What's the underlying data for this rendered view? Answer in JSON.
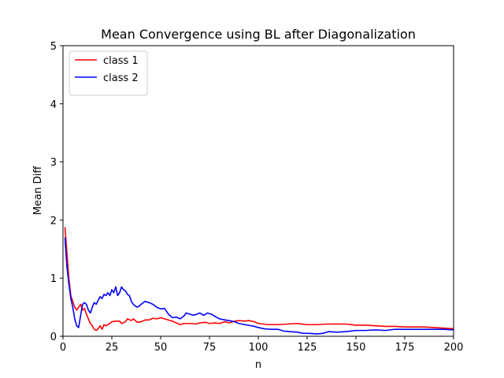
{
  "chart_data": {
    "type": "line",
    "title": "Mean Convergence using BL after Diagonalization",
    "xlabel": "n",
    "ylabel": "Mean Diff",
    "xlim": [
      0,
      200
    ],
    "ylim": [
      0,
      5
    ],
    "xticks": [
      "0",
      "25",
      "50",
      "75",
      "100",
      "125",
      "150",
      "175",
      "200"
    ],
    "yticks": [
      "0",
      "1",
      "2",
      "3",
      "4",
      "5"
    ],
    "grid": false,
    "legend_position": "top-left",
    "series": [
      {
        "name": "class 1",
        "color": "#ff0000",
        "points": [
          [
            1,
            1.88
          ],
          [
            2,
            1.45
          ],
          [
            3,
            1.0
          ],
          [
            4,
            0.7
          ],
          [
            5,
            0.6
          ],
          [
            6,
            0.5
          ],
          [
            7,
            0.45
          ],
          [
            8,
            0.5
          ],
          [
            9,
            0.55
          ],
          [
            10,
            0.45
          ],
          [
            11,
            0.48
          ],
          [
            12,
            0.38
          ],
          [
            13,
            0.3
          ],
          [
            14,
            0.22
          ],
          [
            15,
            0.18
          ],
          [
            16,
            0.12
          ],
          [
            17,
            0.1
          ],
          [
            18,
            0.13
          ],
          [
            19,
            0.18
          ],
          [
            20,
            0.12
          ],
          [
            21,
            0.2
          ],
          [
            22,
            0.18
          ],
          [
            23,
            0.2
          ],
          [
            24,
            0.22
          ],
          [
            25,
            0.25
          ],
          [
            27,
            0.26
          ],
          [
            29,
            0.26
          ],
          [
            30,
            0.22
          ],
          [
            32,
            0.25
          ],
          [
            33,
            0.3
          ],
          [
            35,
            0.27
          ],
          [
            36,
            0.3
          ],
          [
            38,
            0.24
          ],
          [
            40,
            0.25
          ],
          [
            42,
            0.28
          ],
          [
            44,
            0.28
          ],
          [
            46,
            0.31
          ],
          [
            48,
            0.3
          ],
          [
            50,
            0.32
          ],
          [
            52,
            0.3
          ],
          [
            54,
            0.28
          ],
          [
            56,
            0.26
          ],
          [
            58,
            0.23
          ],
          [
            60,
            0.2
          ],
          [
            62,
            0.22
          ],
          [
            65,
            0.22
          ],
          [
            68,
            0.21
          ],
          [
            70,
            0.23
          ],
          [
            73,
            0.24
          ],
          [
            75,
            0.22
          ],
          [
            78,
            0.23
          ],
          [
            80,
            0.22
          ],
          [
            83,
            0.25
          ],
          [
            85,
            0.23
          ],
          [
            88,
            0.26
          ],
          [
            90,
            0.27
          ],
          [
            93,
            0.26
          ],
          [
            95,
            0.27
          ],
          [
            98,
            0.25
          ],
          [
            100,
            0.22
          ],
          [
            105,
            0.2
          ],
          [
            110,
            0.2
          ],
          [
            115,
            0.21
          ],
          [
            120,
            0.22
          ],
          [
            125,
            0.2
          ],
          [
            130,
            0.2
          ],
          [
            135,
            0.21
          ],
          [
            140,
            0.21
          ],
          [
            145,
            0.21
          ],
          [
            150,
            0.19
          ],
          [
            155,
            0.19
          ],
          [
            160,
            0.18
          ],
          [
            165,
            0.17
          ],
          [
            170,
            0.17
          ],
          [
            175,
            0.16
          ],
          [
            180,
            0.16
          ],
          [
            185,
            0.16
          ],
          [
            190,
            0.15
          ],
          [
            195,
            0.14
          ],
          [
            200,
            0.13
          ]
        ]
      },
      {
        "name": "class 2",
        "color": "#0000ff",
        "points": [
          [
            1,
            1.7
          ],
          [
            2,
            1.2
          ],
          [
            3,
            0.9
          ],
          [
            4,
            0.65
          ],
          [
            5,
            0.5
          ],
          [
            6,
            0.3
          ],
          [
            7,
            0.18
          ],
          [
            8,
            0.15
          ],
          [
            9,
            0.35
          ],
          [
            10,
            0.55
          ],
          [
            11,
            0.58
          ],
          [
            12,
            0.55
          ],
          [
            13,
            0.45
          ],
          [
            14,
            0.4
          ],
          [
            15,
            0.5
          ],
          [
            16,
            0.58
          ],
          [
            17,
            0.55
          ],
          [
            18,
            0.62
          ],
          [
            19,
            0.68
          ],
          [
            20,
            0.65
          ],
          [
            21,
            0.72
          ],
          [
            22,
            0.7
          ],
          [
            23,
            0.75
          ],
          [
            24,
            0.7
          ],
          [
            25,
            0.8
          ],
          [
            26,
            0.75
          ],
          [
            27,
            0.85
          ],
          [
            28,
            0.7
          ],
          [
            29,
            0.75
          ],
          [
            30,
            0.85
          ],
          [
            31,
            0.8
          ],
          [
            32,
            0.78
          ],
          [
            33,
            0.72
          ],
          [
            34,
            0.7
          ],
          [
            35,
            0.6
          ],
          [
            36,
            0.55
          ],
          [
            37,
            0.52
          ],
          [
            38,
            0.5
          ],
          [
            39,
            0.52
          ],
          [
            40,
            0.55
          ],
          [
            42,
            0.6
          ],
          [
            44,
            0.58
          ],
          [
            46,
            0.55
          ],
          [
            48,
            0.5
          ],
          [
            50,
            0.47
          ],
          [
            52,
            0.48
          ],
          [
            54,
            0.38
          ],
          [
            56,
            0.32
          ],
          [
            58,
            0.33
          ],
          [
            60,
            0.3
          ],
          [
            62,
            0.35
          ],
          [
            63,
            0.4
          ],
          [
            65,
            0.38
          ],
          [
            67,
            0.36
          ],
          [
            70,
            0.4
          ],
          [
            72,
            0.36
          ],
          [
            74,
            0.4
          ],
          [
            76,
            0.38
          ],
          [
            78,
            0.34
          ],
          [
            80,
            0.3
          ],
          [
            83,
            0.28
          ],
          [
            85,
            0.27
          ],
          [
            88,
            0.25
          ],
          [
            90,
            0.22
          ],
          [
            93,
            0.2
          ],
          [
            95,
            0.19
          ],
          [
            98,
            0.17
          ],
          [
            100,
            0.15
          ],
          [
            103,
            0.13
          ],
          [
            106,
            0.12
          ],
          [
            110,
            0.12
          ],
          [
            113,
            0.09
          ],
          [
            116,
            0.08
          ],
          [
            120,
            0.07
          ],
          [
            123,
            0.05
          ],
          [
            126,
            0.05
          ],
          [
            130,
            0.04
          ],
          [
            133,
            0.05
          ],
          [
            136,
            0.08
          ],
          [
            140,
            0.07
          ],
          [
            145,
            0.08
          ],
          [
            150,
            0.1
          ],
          [
            155,
            0.1
          ],
          [
            160,
            0.11
          ],
          [
            165,
            0.1
          ],
          [
            170,
            0.12
          ],
          [
            175,
            0.12
          ],
          [
            180,
            0.12
          ],
          [
            185,
            0.12
          ],
          [
            190,
            0.12
          ],
          [
            195,
            0.12
          ],
          [
            200,
            0.11
          ]
        ]
      }
    ]
  }
}
